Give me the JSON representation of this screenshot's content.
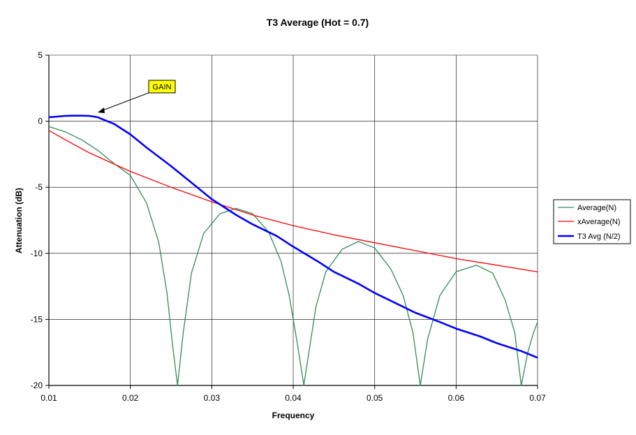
{
  "chart_data": {
    "type": "line",
    "title": "T3 Average (Hot = 0.7)",
    "xlabel": "Frequency",
    "ylabel": "Attenuation (dB)",
    "xlim": [
      0.01,
      0.07
    ],
    "ylim": [
      -20,
      5
    ],
    "x_ticks": [
      "0.01",
      "0.02",
      "0.03",
      "0.04",
      "0.05",
      "0.06",
      "0.07"
    ],
    "y_ticks": [
      "5",
      "0",
      "-5",
      "-10",
      "-15",
      "-20"
    ],
    "grid": "horizontal and vertical",
    "legend_position": "right",
    "annotation": {
      "text": "GAIN",
      "points_to": {
        "x": 0.016,
        "y": 0.4
      }
    },
    "series": [
      {
        "name": "Average(N)",
        "color": "#2e8b57",
        "x": [
          0.01,
          0.012,
          0.014,
          0.016,
          0.018,
          0.02,
          0.022,
          0.0235,
          0.0245,
          0.0252,
          0.0258,
          0.0265,
          0.0275,
          0.029,
          0.031,
          0.033,
          0.035,
          0.037,
          0.0385,
          0.0395,
          0.0405,
          0.0413,
          0.042,
          0.0428,
          0.044,
          0.046,
          0.048,
          0.05,
          0.052,
          0.0535,
          0.0547,
          0.0556,
          0.0565,
          0.058,
          0.06,
          0.0625,
          0.0645,
          0.066,
          0.0672,
          0.068,
          0.0688,
          0.0695,
          0.07
        ],
        "y": [
          -0.4,
          -0.8,
          -1.4,
          -2.2,
          -3.2,
          -4.1,
          -6.2,
          -9.2,
          -13.0,
          -17.0,
          -20.0,
          -16.0,
          -11.5,
          -8.5,
          -7.0,
          -6.6,
          -7.0,
          -8.4,
          -10.6,
          -13.2,
          -16.8,
          -20.0,
          -17.2,
          -14.0,
          -11.4,
          -9.7,
          -9.1,
          -9.6,
          -11.2,
          -13.2,
          -16.0,
          -20.0,
          -16.5,
          -13.2,
          -11.4,
          -10.9,
          -11.5,
          -13.5,
          -16.0,
          -20.0,
          -17.5,
          -16.0,
          -15.2
        ]
      },
      {
        "name": "xAverage(N)",
        "color": "#ff0000",
        "x": [
          0.01,
          0.012,
          0.015,
          0.02,
          0.025,
          0.03,
          0.035,
          0.04,
          0.045,
          0.05,
          0.055,
          0.06,
          0.065,
          0.07
        ],
        "y": [
          -0.7,
          -1.4,
          -2.4,
          -3.8,
          -5.0,
          -6.1,
          -7.1,
          -7.9,
          -8.6,
          -9.2,
          -9.8,
          -10.4,
          -10.9,
          -11.4
        ]
      },
      {
        "name": "T3 Avg (N/2)",
        "color": "#0000ff",
        "x": [
          0.01,
          0.011,
          0.012,
          0.013,
          0.014,
          0.015,
          0.016,
          0.018,
          0.02,
          0.022,
          0.025,
          0.028,
          0.03,
          0.033,
          0.035,
          0.038,
          0.04,
          0.043,
          0.045,
          0.048,
          0.05,
          0.053,
          0.055,
          0.058,
          0.06,
          0.063,
          0.065,
          0.068,
          0.07
        ],
        "y": [
          0.3,
          0.35,
          0.4,
          0.42,
          0.42,
          0.4,
          0.3,
          -0.2,
          -1.0,
          -2.0,
          -3.4,
          -4.9,
          -5.9,
          -7.1,
          -7.8,
          -8.7,
          -9.5,
          -10.6,
          -11.4,
          -12.3,
          -13.0,
          -13.9,
          -14.5,
          -15.2,
          -15.7,
          -16.3,
          -16.8,
          -17.4,
          -17.9
        ]
      }
    ]
  }
}
